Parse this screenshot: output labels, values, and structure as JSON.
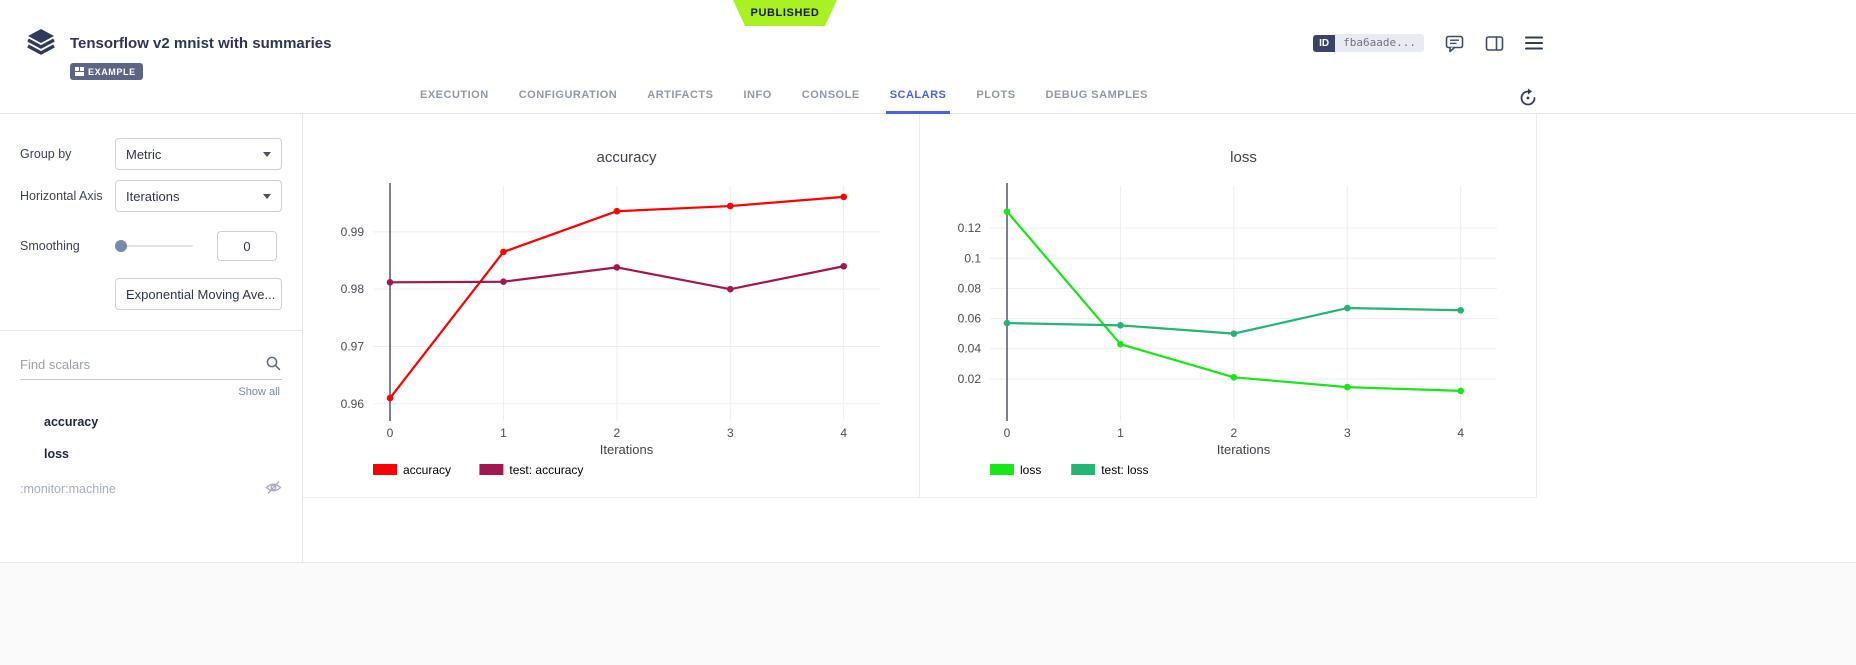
{
  "ribbon": {
    "status": "PUBLISHED",
    "color": "#a9f122"
  },
  "header": {
    "title": "Tensorflow v2 mnist with summaries",
    "example_badge": "EXAMPLE",
    "id_label": "ID",
    "id_value": "fba6aade..."
  },
  "tabs": {
    "items": [
      {
        "label": "EXECUTION"
      },
      {
        "label": "CONFIGURATION"
      },
      {
        "label": "ARTIFACTS"
      },
      {
        "label": "INFO"
      },
      {
        "label": "CONSOLE"
      },
      {
        "label": "SCALARS",
        "active": true
      },
      {
        "label": "PLOTS"
      },
      {
        "label": "DEBUG SAMPLES"
      }
    ]
  },
  "sidebar": {
    "group_by": {
      "label": "Group by",
      "value": "Metric"
    },
    "horizontal_axis": {
      "label": "Horizontal Axis",
      "value": "Iterations"
    },
    "smoothing": {
      "label": "Smoothing",
      "value": "0",
      "type_value": "Exponential Moving Ave..."
    },
    "search": {
      "placeholder": "Find scalars"
    },
    "show_all": "Show all",
    "metrics": [
      {
        "label": "accuracy",
        "hidden": false
      },
      {
        "label": "loss",
        "hidden": false
      },
      {
        "label": ":monitor:machine",
        "hidden": true
      }
    ]
  },
  "chart_data": [
    {
      "type": "line",
      "title": "accuracy",
      "xlabel": "Iterations",
      "x": [
        0,
        1,
        2,
        3,
        4
      ],
      "xticks": [
        0,
        1,
        2,
        3,
        4
      ],
      "yticks": [
        0.96,
        0.97,
        0.98,
        0.99
      ],
      "xlim": [
        -0.15,
        4.32
      ],
      "ylim": [
        0.957,
        0.998
      ],
      "grid": true,
      "legend_position": "bottom-left",
      "series": [
        {
          "name": "accuracy",
          "color": "#ff0000",
          "values": [
            0.961,
            0.9865,
            0.9936,
            0.9945,
            0.9961
          ]
        },
        {
          "name": "test: accuracy",
          "color": "#a2174f",
          "values": [
            0.9812,
            0.9813,
            0.9838,
            0.98,
            0.984
          ]
        }
      ]
    },
    {
      "type": "line",
      "title": "loss",
      "xlabel": "Iterations",
      "x": [
        0,
        1,
        2,
        3,
        4
      ],
      "xticks": [
        0,
        1,
        2,
        3,
        4
      ],
      "yticks": [
        0.02,
        0.04,
        0.06,
        0.08,
        0.1,
        0.12
      ],
      "xlim": [
        -0.15,
        4.32
      ],
      "ylim": [
        -0.008,
        0.148
      ],
      "grid": true,
      "legend_position": "bottom-left",
      "series": [
        {
          "name": "loss",
          "color": "#17e617",
          "values": [
            0.131,
            0.043,
            0.021,
            0.0145,
            0.012
          ]
        },
        {
          "name": "test: loss",
          "color": "#22b573",
          "values": [
            0.057,
            0.0555,
            0.05,
            0.067,
            0.0655
          ]
        }
      ]
    }
  ]
}
